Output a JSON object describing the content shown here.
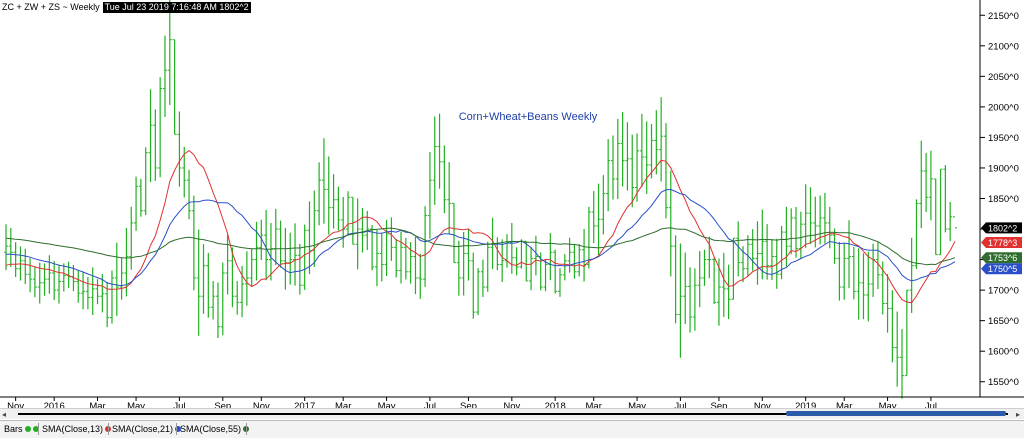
{
  "header": {
    "symbol": "ZC + ZW + ZS ~ Weekly",
    "timestamp": "Tue Jul 23 2019 7:16:48 AM",
    "last": "1802^2"
  },
  "chart_data": {
    "type": "ohlc",
    "title": "Corn+Wheat+Beans Weekly",
    "ylim": [
      1525,
      2175
    ],
    "y_ticks": [
      "1550^0",
      "1600^0",
      "1650^0",
      "1700^0",
      "1750^0",
      "1800^0",
      "1850^0",
      "1900^0",
      "1950^0",
      "2000^0",
      "2050^0",
      "2100^0",
      "2150^0"
    ],
    "y_tick_values": [
      1550,
      1600,
      1650,
      1700,
      1750,
      1800,
      1850,
      1900,
      1950,
      2000,
      2050,
      2100,
      2150
    ],
    "x_ticks": [
      {
        "label": "Nov",
        "bar": 2
      },
      {
        "label": "2016",
        "bar": 10
      },
      {
        "label": "Mar",
        "bar": 19
      },
      {
        "label": "May",
        "bar": 27
      },
      {
        "label": "Jul",
        "bar": 36
      },
      {
        "label": "Sep",
        "bar": 45
      },
      {
        "label": "Nov",
        "bar": 53
      },
      {
        "label": "2017",
        "bar": 62
      },
      {
        "label": "Mar",
        "bar": 70
      },
      {
        "label": "May",
        "bar": 79
      },
      {
        "label": "Jul",
        "bar": 88
      },
      {
        "label": "Sep",
        "bar": 96
      },
      {
        "label": "Nov",
        "bar": 105
      },
      {
        "label": "2018",
        "bar": 114
      },
      {
        "label": "Mar",
        "bar": 122
      },
      {
        "label": "May",
        "bar": 131
      },
      {
        "label": "Jul",
        "bar": 140
      },
      {
        "label": "Sep",
        "bar": 148
      },
      {
        "label": "Nov",
        "bar": 157
      },
      {
        "label": "2019",
        "bar": 166
      },
      {
        "label": "Mar",
        "bar": 174
      },
      {
        "label": "May",
        "bar": 183
      },
      {
        "label": "Jul",
        "bar": 192
      }
    ],
    "closes": [
      1772,
      1762,
      1735,
      1748,
      1726,
      1718,
      1705,
      1712,
      1718,
      1728,
      1700,
      1714,
      1724,
      1722,
      1714,
      1695,
      1698,
      1688,
      1702,
      1690,
      1694,
      1655,
      1720,
      1705,
      1728,
      1755,
      1810,
      1870,
      1830,
      1925,
      1970,
      1900,
      2030,
      2060,
      2110,
      1955,
      1900,
      1880,
      1830,
      1720,
      1690,
      1740,
      1672,
      1690,
      1640,
      1728,
      1748,
      1690,
      1680,
      1710,
      1720,
      1750,
      1770,
      1790,
      1750,
      1768,
      1800,
      1748,
      1745,
      1750,
      1757,
      1708,
      1798,
      1765,
      1830,
      1880,
      1865,
      1835,
      1848,
      1815,
      1800,
      1852,
      1775,
      1800,
      1790,
      1800,
      1738,
      1760,
      1742,
      1792,
      1770,
      1732,
      1770,
      1730,
      1755,
      1720,
      1718,
      1822,
      1880,
      1935,
      1910,
      1848,
      1842,
      1745,
      1720,
      1760,
      1748,
      1664,
      1730,
      1705,
      1770,
      1775,
      1742,
      1748,
      1778,
      1753,
      1738,
      1780,
      1715,
      1752,
      1755,
      1705,
      1742,
      1762,
      1698,
      1725,
      1748,
      1762,
      1730,
      1766,
      1742,
      1828,
      1805,
      1816,
      1858,
      1912,
      1882,
      1940,
      1912,
      1915,
      1868,
      1928,
      1918,
      1905,
      1945,
      1930,
      1952,
      1835,
      1772,
      1660,
      1690,
      1706,
      1656,
      1708,
      1720,
      1750,
      1750,
      1680,
      1705,
      1702,
      1685,
      1785,
      1745,
      1735,
      1775,
      1752,
      1760,
      1780,
      1740,
      1755,
      1726,
      1795,
      1772,
      1818,
      1768,
      1808,
      1826,
      1810,
      1805,
      1818,
      1810,
      1790,
      1752,
      1705,
      1752,
      1755,
      1698,
      1712,
      1692,
      1710,
      1750,
      1725,
      1678,
      1670,
      1606,
      1590,
      1560,
      1700,
      1740,
      1842,
      1895,
      1852,
      1882,
      1758,
      1898,
      1800,
      1820,
      1802
    ],
    "ranges": [
      75,
      64,
      57,
      56,
      58,
      56,
      50,
      67,
      53,
      63,
      64,
      63,
      46,
      43,
      43,
      54,
      62,
      53,
      78,
      41,
      63,
      74,
      87,
      120,
      69,
      112,
      103,
      89,
      62,
      111,
      152,
      117,
      164,
      133,
      176,
      130,
      123,
      83,
      81,
      155,
      174,
      114,
      106,
      63,
      91,
      119,
      98,
      98,
      55,
      84,
      89,
      62,
      96,
      66,
      115,
      94,
      92,
      77,
      101,
      85,
      102,
      83,
      107,
      119,
      125,
      103,
      140,
      128,
      89,
      72,
      83,
      70,
      63,
      116,
      73,
      64,
      74,
      92,
      80,
      92,
      71,
      63,
      85,
      68,
      68,
      94,
      74,
      132,
      142,
      145,
      123,
      111,
      118,
      93,
      90,
      104,
      84,
      108,
      77,
      61,
      82,
      84,
      54,
      70,
      55,
      83,
      46,
      48,
      56,
      71,
      65,
      62,
      52,
      77,
      72,
      47,
      43,
      57,
      57,
      53,
      86,
      101,
      85,
      117,
      97,
      118,
      105,
      131,
      122,
      112,
      119,
      112,
      120,
      119,
      89,
      105,
      138,
      156,
      173,
      144,
      187,
      117,
      107,
      102,
      92,
      59,
      68,
      76,
      110,
      105,
      89,
      86,
      90,
      59,
      67,
      68,
      104,
      114,
      91,
      67,
      82,
      87,
      98,
      75,
      83,
      77,
      104,
      93,
      83,
      80,
      83,
      68,
      58,
      96,
      93,
      111,
      86,
      117,
      108,
      114,
      87,
      77,
      87,
      96,
      118,
      123,
      114,
      72,
      123,
      114,
      143,
      97,
      114,
      114,
      89,
      110,
      64
    ],
    "series": [
      {
        "name": "SMA(Close,13)",
        "color": "#e03030",
        "period": 13
      },
      {
        "name": "SMA(Close,21)",
        "color": "#2a4fc8",
        "period": 21
      },
      {
        "name": "SMA(Close,55)",
        "color": "#2f6e2f",
        "period": 55
      }
    ],
    "sma_seed": {
      "13": 1738,
      "21": 1758,
      "55": 1785
    },
    "last_values": [
      {
        "label": "1802^2",
        "value": 1802,
        "color": "#000000"
      },
      {
        "label": "1778^3",
        "value": 1778,
        "color": "#e03030"
      },
      {
        "label": "1753^6",
        "value": 1753,
        "color": "#2f6e2f"
      },
      {
        "label": "1750^5",
        "value": 1750,
        "color": "#2a4fc8"
      }
    ],
    "bar_color": "#22b022",
    "grid": false
  },
  "legend": {
    "bars_label": "Bars",
    "items": [
      {
        "label": "SMA(Close,13)",
        "color": "#e03030"
      },
      {
        "label": "SMA(Close,21)",
        "color": "#2a4fc8"
      },
      {
        "label": "SMA(Close,55)",
        "color": "#2f6e2f"
      }
    ],
    "bars_dot_color": "#22b022"
  },
  "scroll": {
    "left_arrow": "◂",
    "right_arrow": "▸"
  }
}
